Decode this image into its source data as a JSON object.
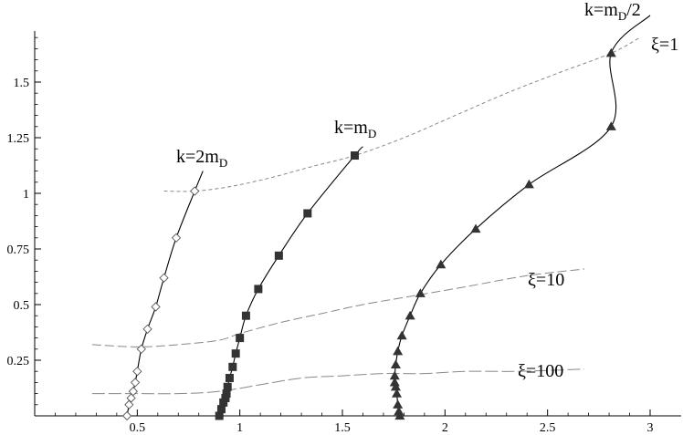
{
  "chart_data": {
    "type": "line",
    "xlim": [
      0,
      3.0
    ],
    "ylim": [
      0,
      1.75
    ],
    "x_ticks": [
      0.5,
      1,
      1.5,
      2,
      2.5,
      3
    ],
    "x_tick_labels": [
      "0.5",
      "1",
      "1.5",
      "2",
      "2.5",
      "3"
    ],
    "y_ticks": [
      0.25,
      0.5,
      0.75,
      1,
      1.25,
      1.5
    ],
    "y_tick_labels": [
      "0.25",
      "0.5",
      "0.75",
      "1",
      "1.25",
      "1.5"
    ],
    "grid": false,
    "series": [
      {
        "name": "k=2mD",
        "marker": "diamond-open",
        "color": "#000000",
        "x": [
          0.45,
          0.46,
          0.47,
          0.48,
          0.49,
          0.5,
          0.52,
          0.55,
          0.59,
          0.63,
          0.69,
          0.78
        ],
        "y": [
          0.0,
          0.05,
          0.08,
          0.11,
          0.15,
          0.2,
          0.3,
          0.39,
          0.49,
          0.62,
          0.8,
          1.01
        ]
      },
      {
        "name": "k=mD",
        "marker": "square-filled",
        "color": "#000000",
        "x": [
          0.9,
          0.91,
          0.92,
          0.93,
          0.935,
          0.94,
          0.95,
          0.965,
          0.98,
          1.0,
          1.03,
          1.09,
          1.19,
          1.33,
          1.56
        ],
        "y": [
          0.0,
          0.03,
          0.06,
          0.08,
          0.1,
          0.13,
          0.17,
          0.22,
          0.28,
          0.35,
          0.45,
          0.57,
          0.72,
          0.91,
          1.17
        ]
      },
      {
        "name": "k=mD/2",
        "marker": "triangle-filled",
        "color": "#000000",
        "x": [
          1.78,
          1.775,
          1.77,
          1.765,
          1.76,
          1.755,
          1.755,
          1.76,
          1.77,
          1.79,
          1.83,
          1.88,
          1.98,
          2.15,
          2.41,
          2.81
        ],
        "y": [
          0.0,
          0.02,
          0.05,
          0.1,
          0.13,
          0.15,
          0.18,
          0.23,
          0.29,
          0.36,
          0.45,
          0.55,
          0.68,
          0.84,
          1.04,
          1.3
        ]
      }
    ],
    "curve_extensions": [
      {
        "from": [
          0.78,
          1.01
        ],
        "to": [
          0.82,
          1.1
        ]
      },
      {
        "from": [
          1.56,
          1.17
        ],
        "to": [
          1.6,
          1.21
        ]
      },
      {
        "from": [
          2.41,
          1.3
        ],
        "to": [
          2.81,
          1.63
        ],
        "then": [
          3.0,
          1.8
        ]
      }
    ],
    "extra_triangles": [
      [
        2.81,
        1.63
      ]
    ],
    "xi_curves": [
      {
        "label": "ξ=1",
        "dash": "4,3",
        "color": "#888888",
        "x": [
          0.63,
          0.78,
          0.95,
          1.15,
          1.35,
          1.56,
          1.8,
          2.05,
          2.3,
          2.55,
          2.81,
          2.95
        ],
        "y": [
          1.01,
          1.01,
          1.03,
          1.07,
          1.12,
          1.17,
          1.25,
          1.35,
          1.45,
          1.54,
          1.63,
          1.7
        ]
      },
      {
        "label": "ξ=10",
        "dash": "10,4",
        "color": "#888888",
        "x": [
          0.28,
          0.5,
          0.7,
          0.9,
          1.0,
          1.2,
          1.4,
          1.6,
          1.85,
          2.1,
          2.4,
          2.68
        ],
        "y": [
          0.32,
          0.31,
          0.32,
          0.34,
          0.37,
          0.42,
          0.46,
          0.5,
          0.54,
          0.58,
          0.63,
          0.66
        ]
      },
      {
        "label": "ξ=100",
        "dash": "14,4",
        "color": "#888888",
        "x": [
          0.28,
          0.5,
          0.7,
          0.9,
          1.1,
          1.3,
          1.5,
          1.7,
          1.9,
          2.1,
          2.35,
          2.68
        ],
        "y": [
          0.1,
          0.1,
          0.1,
          0.11,
          0.14,
          0.17,
          0.18,
          0.19,
          0.19,
          0.2,
          0.2,
          0.21
        ]
      }
    ],
    "annotations": [
      {
        "text": "k=2m",
        "sub": "D",
        "suffix": "",
        "at": "k2mD"
      },
      {
        "text": "k=m",
        "sub": "D",
        "suffix": "",
        "at": "kmD"
      },
      {
        "text": "k=m",
        "sub": "D",
        "suffix": "/2",
        "at": "kmD2"
      },
      {
        "text": "ξ=1",
        "sub": "",
        "suffix": "",
        "at": "xi1"
      },
      {
        "text": "ξ=10",
        "sub": "",
        "suffix": "",
        "at": "xi10"
      },
      {
        "text": "ξ=100",
        "sub": "",
        "suffix": "",
        "at": "xi100"
      }
    ]
  }
}
